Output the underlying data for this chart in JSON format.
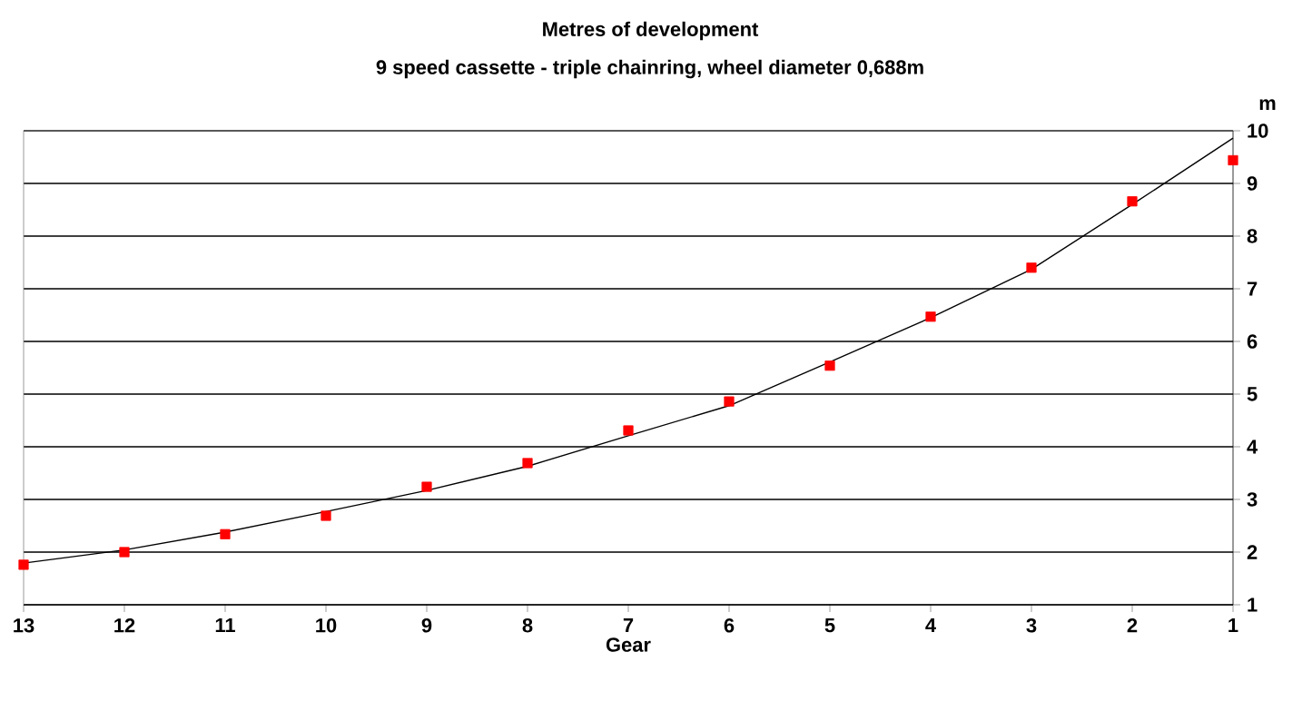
{
  "chart_data": {
    "type": "scatter",
    "title": "Metres of development",
    "subtitle": "9 speed cassette - triple chainring, wheel diameter 0,688m",
    "xlabel": "Gear",
    "ylabel": "m",
    "categories": [
      "13",
      "12",
      "11",
      "10",
      "9",
      "8",
      "7",
      "6",
      "5",
      "4",
      "3",
      "2",
      "1"
    ],
    "series": [
      {
        "color": "#ff0000",
        "marker": "square",
        "values": [
          1.76,
          2.0,
          2.34,
          2.69,
          3.24,
          3.69,
          4.31,
          4.86,
          5.54,
          6.47,
          7.4,
          8.66,
          9.44
        ]
      },
      {
        "type": "line",
        "color": "#000000",
        "marker": "none",
        "line_style": "solid",
        "values": [
          1.79,
          2.04,
          2.38,
          2.77,
          3.17,
          3.63,
          4.21,
          4.78,
          5.61,
          6.45,
          7.37,
          8.6,
          9.86
        ]
      }
    ],
    "ylim": [
      1,
      10
    ],
    "yticks": [
      1,
      2,
      3,
      4,
      5,
      6,
      7,
      8,
      9,
      10
    ],
    "grid": "y"
  }
}
